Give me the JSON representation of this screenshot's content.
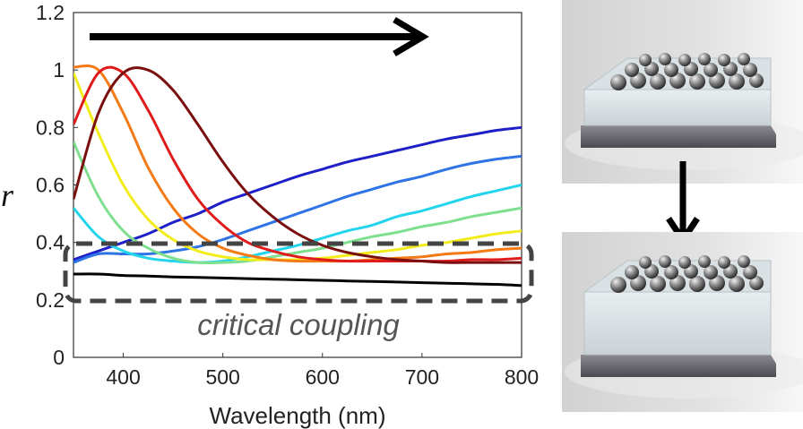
{
  "chart_data": {
    "type": "line",
    "title": "",
    "xlabel": "Wavelength (nm)",
    "ylabel": "r",
    "xlim": [
      350,
      800
    ],
    "ylim": [
      0,
      1.2
    ],
    "xticks": [
      400,
      500,
      600,
      700,
      800
    ],
    "yticks": [
      0,
      0.2,
      0.4,
      0.6,
      0.8,
      1,
      1.2
    ],
    "xtick_labels": [
      "400",
      "500",
      "600",
      "700",
      "800"
    ],
    "ytick_labels": [
      "0",
      "0.2",
      "0.4",
      "0.6",
      "0.8",
      "1",
      "1.2"
    ],
    "grid": false,
    "x": [
      350,
      375,
      400,
      425,
      450,
      475,
      500,
      525,
      550,
      575,
      600,
      625,
      650,
      675,
      700,
      725,
      750,
      775,
      800
    ],
    "series": [
      {
        "name": "blue",
        "color": "#1f1fc8",
        "values": [
          0.34,
          0.37,
          0.4,
          0.43,
          0.47,
          0.5,
          0.54,
          0.57,
          0.6,
          0.63,
          0.655,
          0.68,
          0.7,
          0.72,
          0.74,
          0.76,
          0.775,
          0.79,
          0.8
        ]
      },
      {
        "name": "mid-blue",
        "color": "#2f74e6",
        "values": [
          0.33,
          0.36,
          0.36,
          0.36,
          0.37,
          0.385,
          0.41,
          0.44,
          0.47,
          0.5,
          0.53,
          0.56,
          0.585,
          0.61,
          0.63,
          0.655,
          0.675,
          0.69,
          0.7
        ]
      },
      {
        "name": "cyan",
        "color": "#22d5ec",
        "values": [
          0.52,
          0.42,
          0.37,
          0.345,
          0.335,
          0.33,
          0.335,
          0.35,
          0.37,
          0.39,
          0.415,
          0.44,
          0.46,
          0.49,
          0.51,
          0.535,
          0.56,
          0.58,
          0.6
        ]
      },
      {
        "name": "green",
        "color": "#7ee08e",
        "values": [
          0.75,
          0.56,
          0.44,
          0.38,
          0.345,
          0.33,
          0.33,
          0.335,
          0.35,
          0.365,
          0.38,
          0.4,
          0.42,
          0.435,
          0.455,
          0.47,
          0.49,
          0.505,
          0.52
        ]
      },
      {
        "name": "yellow",
        "color": "#f2ec1a",
        "values": [
          0.99,
          0.78,
          0.6,
          0.48,
          0.41,
          0.37,
          0.35,
          0.34,
          0.34,
          0.34,
          0.345,
          0.355,
          0.365,
          0.375,
          0.39,
          0.4,
          0.415,
          0.43,
          0.44
        ]
      },
      {
        "name": "orange",
        "color": "#f47a16",
        "values": [
          1.01,
          1.0,
          0.85,
          0.66,
          0.52,
          0.43,
          0.38,
          0.355,
          0.34,
          0.335,
          0.335,
          0.335,
          0.34,
          0.345,
          0.35,
          0.36,
          0.365,
          0.375,
          0.38
        ]
      },
      {
        "name": "red",
        "color": "#e01b1b",
        "values": [
          0.81,
          0.99,
          0.99,
          0.86,
          0.69,
          0.55,
          0.46,
          0.4,
          0.37,
          0.35,
          0.34,
          0.335,
          0.335,
          0.335,
          0.335,
          0.335,
          0.34,
          0.34,
          0.345
        ]
      },
      {
        "name": "dark-red",
        "color": "#7a0f0f",
        "values": [
          0.55,
          0.85,
          0.99,
          1.0,
          0.93,
          0.81,
          0.68,
          0.57,
          0.49,
          0.43,
          0.39,
          0.365,
          0.35,
          0.34,
          0.335,
          0.33,
          0.33,
          0.33,
          0.33
        ]
      },
      {
        "name": "black",
        "color": "#000000",
        "values": [
          0.29,
          0.29,
          0.285,
          0.283,
          0.28,
          0.278,
          0.276,
          0.274,
          0.272,
          0.27,
          0.268,
          0.266,
          0.264,
          0.262,
          0.26,
          0.258,
          0.256,
          0.254,
          0.25
        ]
      }
    ],
    "annotations": [
      {
        "text": "critical coupling",
        "note": "dashed rounded box spanning r 0.2 to 0.38"
      }
    ],
    "arrow": "rightward arrow along top of plot indicating red-shift direction"
  },
  "images": {
    "top": "nanoparticle-coated-substrate-before",
    "bottom": "nanoparticle-coated-substrate-after"
  }
}
